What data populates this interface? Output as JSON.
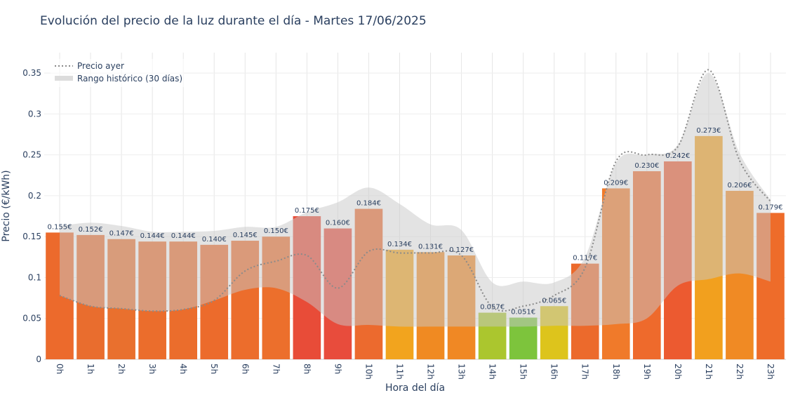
{
  "chart_data": {
    "type": "bar",
    "title": "Evolución del precio de la luz durante el día - Martes 17/06/2025",
    "xlabel": "Hora del día",
    "ylabel": "Precio (€/kWh)",
    "ylim": [
      0,
      0.375
    ],
    "yticks": [
      0,
      0.05,
      0.1,
      0.15,
      0.2,
      0.25,
      0.3,
      0.35
    ],
    "ytick_labels": [
      "0",
      "0.05",
      "0.1",
      "0.15",
      "0.2",
      "0.25",
      "0.3",
      "0.35"
    ],
    "grid": true,
    "legend_position": "top-left",
    "categories": [
      "0h",
      "1h",
      "2h",
      "3h",
      "4h",
      "5h",
      "6h",
      "7h",
      "8h",
      "9h",
      "10h",
      "11h",
      "12h",
      "13h",
      "14h",
      "15h",
      "16h",
      "17h",
      "18h",
      "19h",
      "20h",
      "21h",
      "22h",
      "23h"
    ],
    "series": [
      {
        "values": [
          0.155,
          0.152,
          0.147,
          0.144,
          0.144,
          0.14,
          0.145,
          0.15,
          0.175,
          0.16,
          0.184,
          0.134,
          0.131,
          0.127,
          0.057,
          0.051,
          0.065,
          0.117,
          0.209,
          0.23,
          0.242,
          0.273,
          0.206,
          0.179
        ],
        "labels": [
          "0.155€",
          "0.152€",
          "0.147€",
          "0.144€",
          "0.144€",
          "0.140€",
          "0.145€",
          "0.150€",
          "0.175€",
          "0.160€",
          "0.184€",
          "0.134€",
          "0.131€",
          "0.127€",
          "0.057€",
          "0.051€",
          "0.065€",
          "0.117€",
          "0.209€",
          "0.230€",
          "0.242€",
          "0.273€",
          "0.206€",
          "0.179€"
        ],
        "colors": [
          "#ec6a2c",
          "#e96d2e",
          "#e9702e",
          "#eb6d2c",
          "#eb6d2c",
          "#ec6b2c",
          "#ec6d2c",
          "#ec6f2c",
          "#e84c38",
          "#e84c3c",
          "#ec6a2e",
          "#f2a41e",
          "#f08a22",
          "#f08824",
          "#abc62e",
          "#7dc43c",
          "#ddc41c",
          "#ec6a2c",
          "#f07a2a",
          "#ee6a2c",
          "#ec5a30",
          "#f2a01e",
          "#f08a24",
          "#ee6c2a"
        ]
      },
      {
        "name": "Precio ayer",
        "style": "dotted-line",
        "color": "#8a8a8a",
        "values": [
          0.078,
          0.065,
          0.062,
          0.059,
          0.061,
          0.072,
          0.108,
          0.12,
          0.127,
          0.087,
          0.132,
          0.13,
          0.13,
          0.127,
          0.064,
          0.065,
          0.078,
          0.112,
          0.242,
          0.25,
          0.26,
          0.354,
          0.243,
          0.193
        ]
      },
      {
        "name": "Rango histórico (30 días)",
        "style": "band",
        "color": "rgba(200,200,200,0.5)",
        "upper": [
          0.163,
          0.167,
          0.163,
          0.156,
          0.156,
          0.157,
          0.162,
          0.162,
          0.18,
          0.192,
          0.21,
          0.19,
          0.165,
          0.158,
          0.094,
          0.095,
          0.094,
          0.125,
          0.24,
          0.25,
          0.262,
          0.35,
          0.252,
          0.195
        ],
        "lower": [
          0.078,
          0.065,
          0.062,
          0.059,
          0.061,
          0.072,
          0.085,
          0.087,
          0.07,
          0.043,
          0.042,
          0.04,
          0.04,
          0.04,
          0.04,
          0.04,
          0.041,
          0.041,
          0.043,
          0.05,
          0.09,
          0.098,
          0.105,
          0.095
        ]
      }
    ]
  }
}
